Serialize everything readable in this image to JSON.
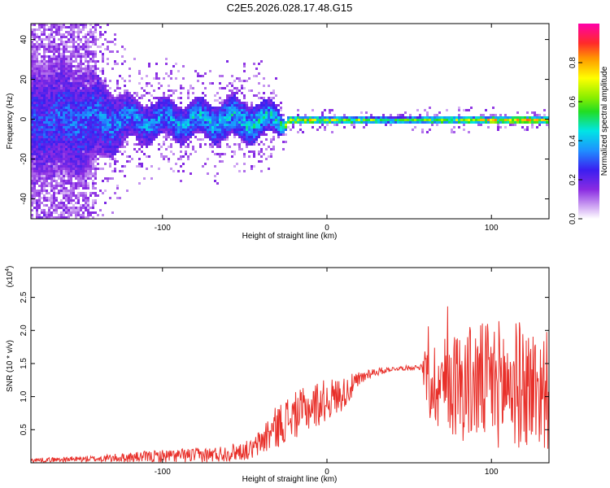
{
  "title": "C2E5.2026.028.17.48.G15",
  "chart_data": [
    {
      "type": "heatmap",
      "xlabel": "Height of straight line (km)",
      "ylabel": "Frequency (Hz)",
      "xlim": [
        -180,
        135
      ],
      "ylim": [
        -50,
        48
      ],
      "xticks": [
        -100,
        0,
        100
      ],
      "yticks": [
        -40,
        -20,
        0,
        20,
        40
      ],
      "colorbar": {
        "label": "Normalized spectral amplitude",
        "range": [
          0.0,
          1.0
        ],
        "ticks": [
          0.0,
          0.2,
          0.4,
          0.6,
          0.8
        ]
      },
      "profile": [
        {
          "x": -180,
          "spread": 30,
          "amp": 0.35
        },
        {
          "x": -150,
          "spread": 26,
          "amp": 0.4
        },
        {
          "x": -120,
          "spread": 10,
          "amp": 0.45
        },
        {
          "x": -80,
          "spread": 9,
          "amp": 0.5
        },
        {
          "x": -50,
          "spread": 10,
          "amp": 0.55
        },
        {
          "x": -30,
          "spread": 7,
          "amp": 0.55
        },
        {
          "x": -25,
          "spread": 2,
          "amp": 0.9
        },
        {
          "x": 0,
          "spread": 2,
          "amp": 0.85
        },
        {
          "x": 40,
          "spread": 1.5,
          "amp": 0.7
        },
        {
          "x": 60,
          "spread": 2,
          "amp": 0.75
        },
        {
          "x": 100,
          "spread": 2,
          "amp": 0.9
        },
        {
          "x": 135,
          "spread": 2,
          "amp": 0.95
        }
      ]
    },
    {
      "type": "line",
      "xlabel": "Height of straight line (km)",
      "ylabel": "SNR (10 * v/v)",
      "yscale_label": "(x10",
      "yscale_exp": "4",
      "yscale_close": ")",
      "xlim": [
        -180,
        135
      ],
      "ylim": [
        0,
        2.95
      ],
      "xticks": [
        -100,
        0,
        100
      ],
      "yticks": [
        0.5,
        1.0,
        1.5,
        2.0,
        2.5
      ],
      "color": "#e8302a",
      "envelope": [
        {
          "x": -180,
          "base": 0.04,
          "noise": 0.03
        },
        {
          "x": -140,
          "base": 0.06,
          "noise": 0.05
        },
        {
          "x": -100,
          "base": 0.1,
          "noise": 0.1
        },
        {
          "x": -70,
          "base": 0.12,
          "noise": 0.12
        },
        {
          "x": -45,
          "base": 0.2,
          "noise": 0.15
        },
        {
          "x": -35,
          "base": 0.45,
          "noise": 0.3
        },
        {
          "x": -25,
          "base": 0.65,
          "noise": 0.35
        },
        {
          "x": -5,
          "base": 0.9,
          "noise": 0.35
        },
        {
          "x": 10,
          "base": 1.05,
          "noise": 0.25
        },
        {
          "x": 25,
          "base": 1.35,
          "noise": 0.08
        },
        {
          "x": 40,
          "base": 1.42,
          "noise": 0.03
        },
        {
          "x": 58,
          "base": 1.45,
          "noise": 0.04
        },
        {
          "x": 60,
          "base": 1.2,
          "noise": 0.6
        },
        {
          "x": 85,
          "base": 1.2,
          "noise": 0.9
        },
        {
          "x": 110,
          "base": 1.2,
          "noise": 1.0
        },
        {
          "x": 135,
          "base": 1.1,
          "noise": 0.9
        }
      ]
    }
  ]
}
